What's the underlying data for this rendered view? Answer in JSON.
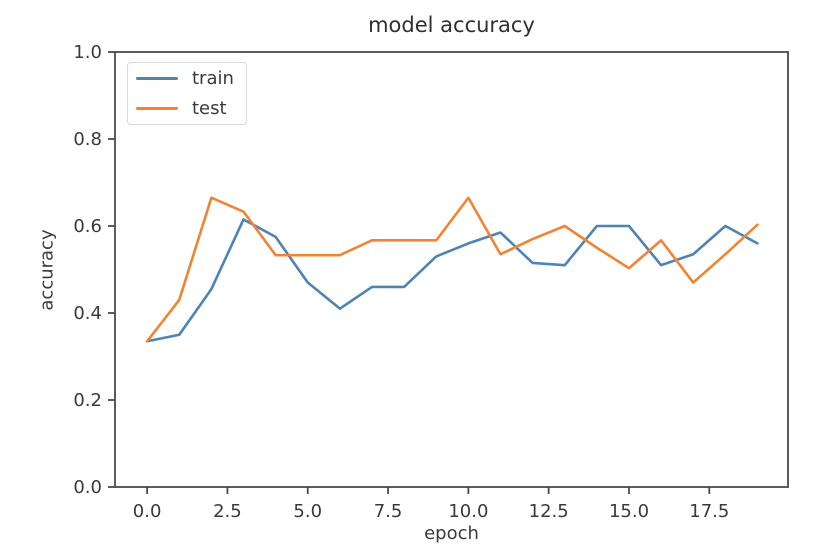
{
  "chart_data": {
    "type": "line",
    "title": "model accuracy",
    "xlabel": "epoch",
    "ylabel": "accuracy",
    "x": [
      0,
      1,
      2,
      3,
      4,
      5,
      6,
      7,
      8,
      9,
      10,
      11,
      12,
      13,
      14,
      15,
      16,
      17,
      18,
      19
    ],
    "series": [
      {
        "name": "train",
        "color": "#4e84b5",
        "values": [
          0.335,
          0.35,
          0.455,
          0.615,
          0.575,
          0.47,
          0.41,
          0.46,
          0.46,
          0.53,
          0.56,
          0.585,
          0.515,
          0.51,
          0.6,
          0.6,
          0.51,
          0.535,
          0.6,
          0.56
        ]
      },
      {
        "name": "test",
        "color": "#f08432",
        "values": [
          0.335,
          0.43,
          0.665,
          0.633,
          0.533,
          0.533,
          0.533,
          0.567,
          0.567,
          0.567,
          0.665,
          0.535,
          0.57,
          0.6,
          0.55,
          0.503,
          0.567,
          0.47,
          0.535,
          0.603
        ]
      }
    ],
    "xlim": [
      -1.0,
      19.95
    ],
    "ylim": [
      0.0,
      1.0
    ],
    "xticks": [
      0.0,
      2.5,
      5.0,
      7.5,
      10.0,
      12.5,
      15.0,
      17.5
    ],
    "xtick_labels": [
      "0.0",
      "2.5",
      "5.0",
      "7.5",
      "10.0",
      "12.5",
      "15.0",
      "17.5"
    ],
    "yticks": [
      0.0,
      0.2,
      0.4,
      0.6,
      0.8,
      1.0
    ],
    "ytick_labels": [
      "0.0",
      "0.2",
      "0.4",
      "0.6",
      "0.8",
      "1.0"
    ],
    "grid": false,
    "legend_position": "upper left",
    "frame_color": "#4a4a4a",
    "text_color": "#3a3a3a"
  }
}
